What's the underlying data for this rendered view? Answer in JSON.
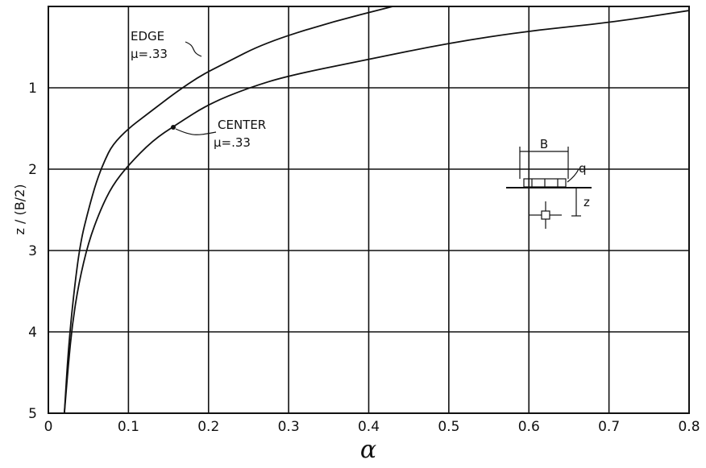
{
  "chart_data": {
    "type": "line",
    "xlabel": "α",
    "ylabel": "z / (B/2)",
    "xlim": [
      0,
      0.8
    ],
    "ylim": [
      5,
      0
    ],
    "y_inverted": true,
    "grid": true,
    "xticks": [
      "0",
      "0.1",
      "0.2",
      "0.3",
      "0.4",
      "0.5",
      "0.6",
      "0.7",
      "0.8"
    ],
    "yticks": [
      "1",
      "2",
      "3",
      "4",
      "5"
    ],
    "series": [
      {
        "name": "EDGE",
        "annotation": "μ=.33",
        "x": [
          0.43,
          0.35,
          0.27,
          0.22,
          0.19,
          0.16,
          0.14,
          0.12,
          0.1,
          0.08,
          0.07,
          0.06,
          0.05,
          0.04,
          0.032,
          0.025,
          0.02
        ],
        "y": [
          0.0,
          0.2,
          0.45,
          0.7,
          0.85,
          1.05,
          1.2,
          1.35,
          1.5,
          1.7,
          1.9,
          2.15,
          2.5,
          2.9,
          3.5,
          4.2,
          5.0
        ]
      },
      {
        "name": "CENTER",
        "annotation": "μ=.33",
        "x": [
          0.8,
          0.7,
          0.6,
          0.5,
          0.4,
          0.3,
          0.25,
          0.2,
          0.16,
          0.13,
          0.1,
          0.08,
          0.065,
          0.05,
          0.038,
          0.03,
          0.025,
          0.02
        ],
        "y": [
          0.05,
          0.2,
          0.3,
          0.45,
          0.65,
          0.85,
          1.0,
          1.2,
          1.45,
          1.65,
          1.95,
          2.2,
          2.5,
          2.9,
          3.4,
          3.9,
          4.4,
          5.0
        ]
      }
    ],
    "inset": {
      "width_label": "B",
      "load_label": "q",
      "depth_label": "z"
    }
  }
}
